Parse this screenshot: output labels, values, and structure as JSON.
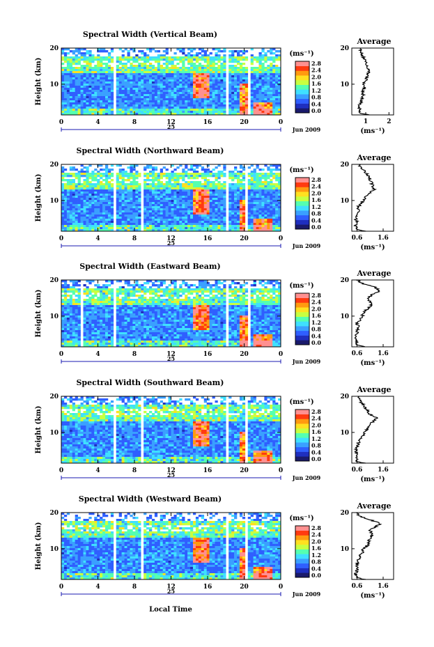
{
  "figure": {
    "xlabel": "Local Time",
    "ylabel": "Height (km)",
    "colorbar_unit": "(ms⁻¹)",
    "colorbar_ticks": [
      "2.8",
      "2.4",
      "2.0",
      "1.6",
      "1.2",
      "0.8",
      "0.4",
      "0.0"
    ],
    "time_ticks": [
      "0",
      "4",
      "8",
      "12",
      "16",
      "20",
      "0"
    ],
    "date_label": "25",
    "month_label": "Jun 2009",
    "avg_title": "Average",
    "avg_xlabel": "(ms⁻¹)"
  },
  "colors": {
    "scale": [
      "#1a1a6b",
      "#1f2fbf",
      "#2f5fff",
      "#3aa0ff",
      "#3fe0ff",
      "#55ffb0",
      "#c8ff40",
      "#ffe020",
      "#ff9a10",
      "#ff3a10",
      "#ff9090"
    ],
    "background": "#ffffff"
  },
  "chart_data": [
    {
      "type": "heatmap",
      "title": "Spectral Width (Vertical Beam)",
      "x_range_hours": [
        0,
        24
      ],
      "y_range_km": [
        1.5,
        20
      ],
      "yticks": [
        "20",
        "10"
      ],
      "cbar_range": [
        0.0,
        3.0
      ],
      "average": {
        "title": "Average",
        "xticks": [
          "1",
          "2"
        ],
        "xlim": [
          0.4,
          2.2
        ],
        "height_km": [
          1.5,
          2,
          3,
          4,
          5,
          6,
          7,
          8,
          9,
          10,
          11,
          12,
          13,
          14,
          15,
          16,
          17,
          18,
          19,
          20
        ],
        "width_ms": [
          1.2,
          0.7,
          0.75,
          0.7,
          0.8,
          0.85,
          0.9,
          0.85,
          0.95,
          0.9,
          1.0,
          1.05,
          1.1,
          1.15,
          1.05,
          1.0,
          0.95,
          0.85,
          0.8,
          0.75
        ]
      }
    },
    {
      "type": "heatmap",
      "title": "Spectral Width (Northward Beam)",
      "x_range_hours": [
        0,
        24
      ],
      "y_range_km": [
        1.5,
        20
      ],
      "yticks": [
        "20",
        "10"
      ],
      "cbar_range": [
        0.0,
        3.0
      ],
      "average": {
        "title": "Average",
        "xticks": [
          "0.6",
          "1.6"
        ],
        "xlim": [
          0.4,
          2.0
        ],
        "height_km": [
          1.5,
          2,
          3,
          4,
          5,
          6,
          7,
          8,
          9,
          10,
          11,
          12,
          13,
          14,
          15,
          16,
          17,
          18,
          19,
          20
        ],
        "width_ms": [
          0.9,
          0.6,
          0.55,
          0.6,
          0.55,
          0.6,
          0.65,
          0.6,
          0.75,
          0.85,
          0.9,
          1.05,
          1.25,
          1.2,
          1.15,
          1.1,
          1.0,
          0.9,
          0.75,
          0.7
        ]
      }
    },
    {
      "type": "heatmap",
      "title": "Spectral Width (Eastward Beam)",
      "x_range_hours": [
        0,
        24
      ],
      "y_range_km": [
        1.5,
        20
      ],
      "yticks": [
        "20",
        "10"
      ],
      "cbar_range": [
        0.0,
        3.0
      ],
      "average": {
        "title": "Average",
        "xticks": [
          "0.6",
          "1.6"
        ],
        "xlim": [
          0.4,
          2.0
        ],
        "height_km": [
          1.5,
          2,
          3,
          4,
          5,
          6,
          7,
          8,
          9,
          10,
          11,
          12,
          13,
          14,
          15,
          16,
          17,
          18,
          19,
          20
        ],
        "width_ms": [
          0.9,
          0.6,
          0.6,
          0.55,
          0.6,
          0.6,
          0.65,
          0.6,
          0.75,
          0.8,
          0.85,
          1.0,
          1.15,
          1.1,
          1.0,
          1.2,
          1.5,
          1.3,
          0.8,
          0.6
        ]
      }
    },
    {
      "type": "heatmap",
      "title": "Spectral Width (Southward Beam)",
      "x_range_hours": [
        0,
        24
      ],
      "y_range_km": [
        1.5,
        20
      ],
      "yticks": [
        "20",
        "10"
      ],
      "cbar_range": [
        0.0,
        3.0
      ],
      "average": {
        "title": "Average",
        "xticks": [
          "0.6",
          "1.6"
        ],
        "xlim": [
          0.4,
          2.0
        ],
        "height_km": [
          1.5,
          2,
          3,
          4,
          5,
          6,
          7,
          8,
          9,
          10,
          11,
          12,
          13,
          14,
          15,
          16,
          17,
          18,
          19,
          20
        ],
        "width_ms": [
          0.9,
          0.6,
          0.55,
          0.6,
          0.55,
          0.6,
          0.65,
          0.7,
          0.8,
          0.9,
          1.0,
          1.1,
          1.2,
          1.35,
          1.1,
          1.0,
          0.9,
          0.8,
          0.7,
          0.6
        ]
      }
    },
    {
      "type": "heatmap",
      "title": "Spectral Width (Westward Beam)",
      "x_range_hours": [
        0,
        24
      ],
      "y_range_km": [
        1.5,
        20
      ],
      "yticks": [
        "20",
        "10"
      ],
      "cbar_range": [
        0.0,
        3.0
      ],
      "average": {
        "title": "Average",
        "xticks": [
          "0.6",
          "1.6"
        ],
        "xlim": [
          0.4,
          2.0
        ],
        "height_km": [
          1.5,
          2,
          3,
          4,
          5,
          6,
          7,
          8,
          9,
          10,
          11,
          12,
          13,
          14,
          15,
          16,
          17,
          18,
          19,
          20
        ],
        "width_ms": [
          0.9,
          0.6,
          0.55,
          0.6,
          0.6,
          0.6,
          0.65,
          0.7,
          0.8,
          0.85,
          1.0,
          1.05,
          1.1,
          1.2,
          1.1,
          1.3,
          1.5,
          1.1,
          0.7,
          0.6
        ]
      }
    }
  ]
}
